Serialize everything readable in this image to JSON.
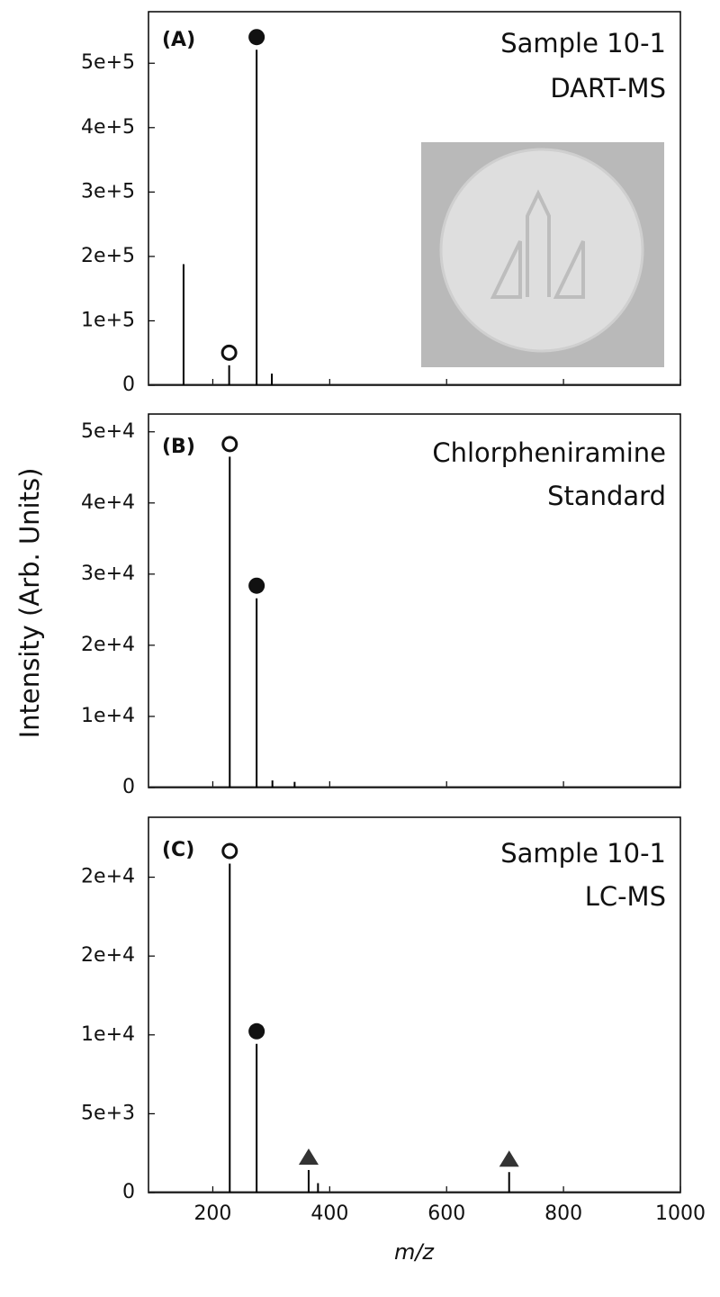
{
  "chart_data": [
    {
      "type": "stem",
      "panel_label": "(A)",
      "title_lines": [
        "Sample 10-1",
        "DART-MS"
      ],
      "x": [
        150,
        228,
        275,
        301
      ],
      "values": [
        188000,
        31000,
        521000,
        18000
      ],
      "markers": [
        null,
        "open-circle",
        "filled-circle",
        null
      ],
      "color": "#000000",
      "xlim": [
        90,
        1000
      ],
      "xticks": [
        200,
        400,
        600,
        800,
        1000
      ],
      "show_xtick_labels": false,
      "ylim": [
        0,
        580000
      ],
      "yticks": [
        0,
        {
          "value": 100000,
          "label": "1e+5"
        },
        {
          "value": 200000,
          "label": "2e+5"
        },
        {
          "value": 300000,
          "label": "3e+5"
        },
        {
          "value": 400000,
          "label": "4e+5"
        },
        {
          "value": 500000,
          "label": "5e+5"
        }
      ]
    },
    {
      "type": "stem",
      "panel_label": "(B)",
      "title_lines": [
        "Chlorpheniramine",
        "Standard"
      ],
      "x": [
        229,
        275,
        302,
        340
      ],
      "values": [
        46500,
        26600,
        1000,
        800
      ],
      "markers": [
        "open-circle",
        "filled-circle",
        null,
        null
      ],
      "color": "#000000",
      "xlim": [
        90,
        1000
      ],
      "xticks": [
        200,
        400,
        600,
        800,
        1000
      ],
      "show_xtick_labels": false,
      "ylim": [
        0,
        52500
      ],
      "ylabel": "Intensity (Arb. Units)",
      "yticks": [
        0,
        {
          "value": 10000,
          "label": "1e+4"
        },
        {
          "value": 20000,
          "label": "2e+4"
        },
        {
          "value": 30000,
          "label": "3e+4"
        },
        {
          "value": 40000,
          "label": "4e+4"
        },
        {
          "value": 50000,
          "label": "5e+4"
        }
      ]
    },
    {
      "type": "stem",
      "panel_label": "(C)",
      "title_lines": [
        "Sample 10-1",
        "LC-MS"
      ],
      "x": [
        229,
        275,
        364,
        380,
        707
      ],
      "values": [
        20860,
        9430,
        1430,
        600,
        1300
      ],
      "markers": [
        "open-circle",
        "filled-circle",
        "triangle",
        null,
        "triangle"
      ],
      "color": "#000000",
      "xlim": [
        90,
        1000
      ],
      "xticks": [
        200,
        400,
        600,
        800,
        1000
      ],
      "show_xtick_labels": true,
      "xlabel": "m/z",
      "ylim": [
        0,
        23800
      ],
      "yticks": [
        0,
        {
          "value": 5000,
          "label": "5e+3"
        },
        {
          "value": 10000,
          "label": "1e+4"
        },
        {
          "value": 15000,
          "label": "2e+4"
        },
        {
          "value": 20000,
          "label": "2e+4"
        }
      ]
    }
  ]
}
